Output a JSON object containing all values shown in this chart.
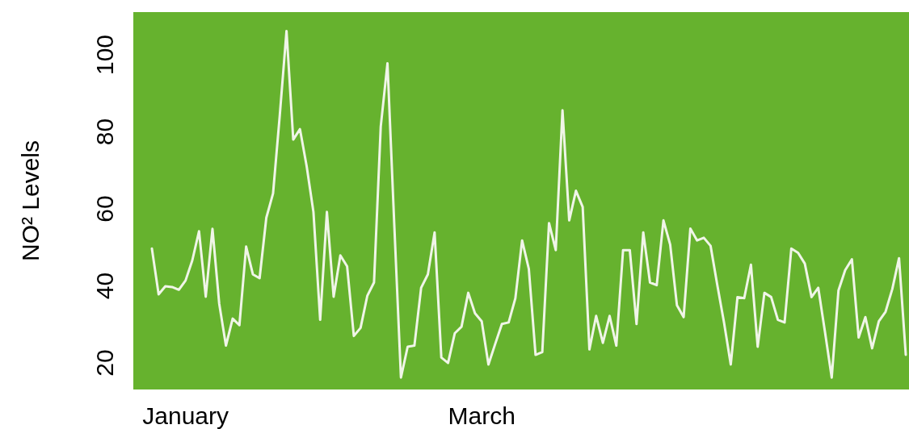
{
  "chart_data": {
    "type": "line",
    "ylabel": "NO² Levels",
    "categories": [
      null,
      null,
      null,
      null,
      null,
      "January",
      null,
      null,
      null,
      null,
      null,
      null,
      null,
      null,
      null,
      null,
      null,
      null,
      null,
      null,
      null,
      null,
      null,
      null,
      null,
      null,
      null,
      null,
      null,
      null,
      null,
      null,
      null,
      null,
      null,
      null,
      null,
      null,
      null,
      null,
      null,
      null,
      null,
      null,
      null,
      null,
      null,
      null,
      null,
      "March",
      null,
      null,
      null,
      null,
      null,
      null,
      null,
      null,
      null,
      null,
      null,
      null,
      null,
      null,
      null,
      null,
      null,
      null,
      null,
      null,
      null,
      null,
      null,
      null,
      null,
      null,
      null,
      null,
      null,
      null,
      null,
      null,
      null,
      null,
      null,
      null,
      null,
      null,
      null,
      null,
      null,
      null,
      null,
      null,
      null,
      null,
      null,
      null,
      null,
      null,
      null,
      null,
      null,
      null,
      null,
      null,
      null,
      null,
      null,
      null,
      null,
      null,
      null
    ],
    "series": [
      {
        "color": "#f0f5e8",
        "values": [
          49.7,
          37.8,
          39.9,
          39.7,
          39.0,
          41.4,
          46.6,
          54.2,
          37.2,
          54.8,
          35.4,
          24.5,
          31.5,
          29.8,
          50.2,
          43.0,
          42.0,
          57.7,
          64.0,
          84.3,
          106.2,
          78.0,
          80.7,
          71,
          59.2,
          31.2,
          59.2,
          37.2,
          47.9,
          45.1,
          27.0,
          29.1,
          37.4,
          40.9,
          81.4,
          97.8,
          56.3,
          16.2,
          24.2,
          24.5,
          39.5,
          43.0,
          53.9,
          21.4,
          20.0,
          27.7,
          29.4,
          38.2,
          32.9,
          30.8,
          19.6,
          24.9,
          30.1,
          30.5,
          36.8,
          51.8,
          44.4,
          22.1,
          22.8,
          56.3,
          49.3,
          85.6,
          57.0,
          64.7,
          60.5,
          23.5,
          32.2,
          25.2,
          32.2,
          24.5,
          49.3,
          49.3,
          30.1,
          53.9,
          40.9,
          40.2,
          57.0,
          50.7,
          35.0,
          31.9,
          54.9,
          51.8,
          52.5,
          50.4,
          40.2,
          30.5,
          19.6,
          37.1,
          36.8,
          45.5,
          24.2,
          38.2,
          37.1,
          31.2,
          30.5,
          49.7,
          48.6,
          45.8,
          37.1,
          39.5,
          28.0,
          16.2,
          38.8,
          44.1,
          46.9,
          26.6,
          31.9,
          23.8,
          30.8,
          33.3,
          39.2,
          47.2,
          22.1
        ]
      }
    ],
    "ylim": [
      13.1,
      111.1
    ],
    "yticks": [
      20,
      40,
      60,
      80,
      100
    ],
    "grid": false,
    "marker": "none",
    "line_style": "solid"
  }
}
